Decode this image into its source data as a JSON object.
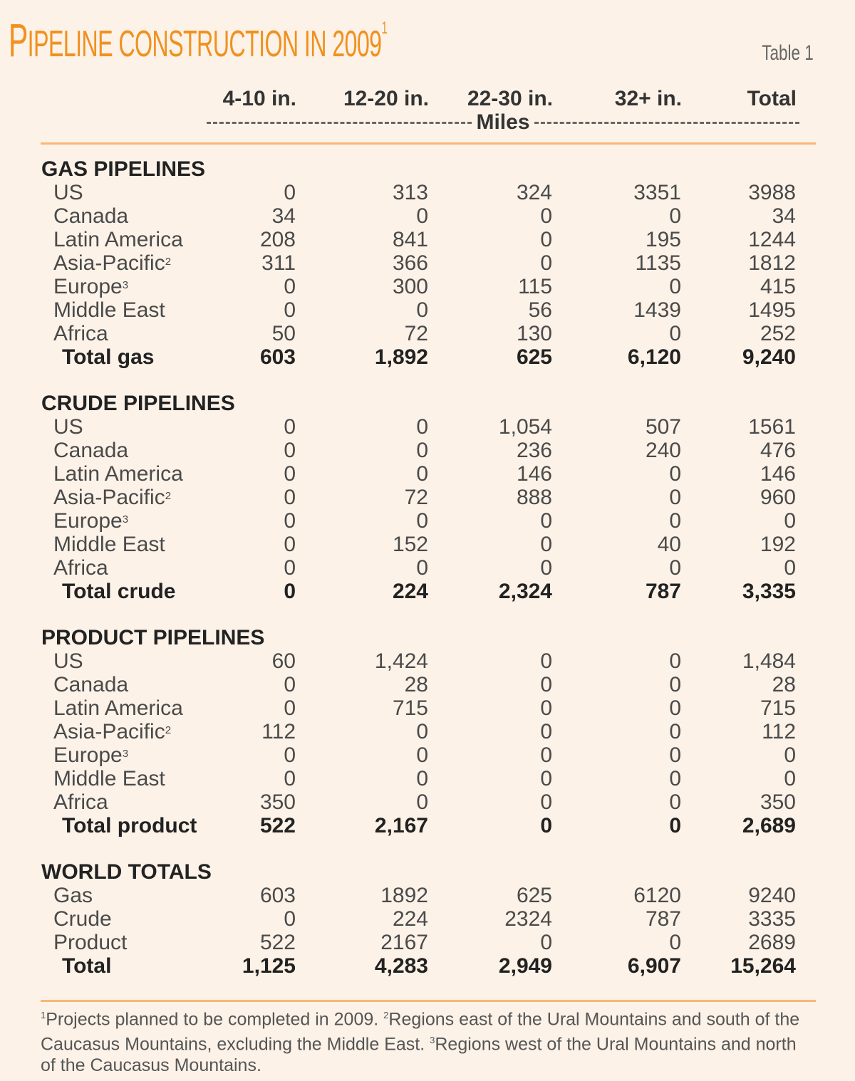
{
  "title": {
    "first_letter": "P",
    "rest": "IPELINE CONSTRUCTION IN 2009",
    "sup": "1"
  },
  "table_number": "Table 1",
  "columns": [
    "4-10 in.",
    "12-20 in.",
    "22-30 in.",
    "32+ in.",
    "Total"
  ],
  "unit": "Miles",
  "sections": [
    {
      "title": "GAS PIPELINES",
      "rows": [
        {
          "label": "US",
          "sup": "",
          "values": [
            "0",
            "313",
            "324",
            "3351",
            "3988"
          ]
        },
        {
          "label": "Canada",
          "sup": "",
          "values": [
            "34",
            "0",
            "0",
            "0",
            "34"
          ]
        },
        {
          "label": "Latin  America",
          "sup": "",
          "values": [
            "208",
            "841",
            "0",
            "195",
            "1244"
          ]
        },
        {
          "label": "Asia-Pacific",
          "sup": "2",
          "values": [
            "311",
            "366",
            "0",
            "1135",
            "1812"
          ]
        },
        {
          "label": "Europe",
          "sup": "3",
          "values": [
            "0",
            "300",
            "115",
            "0",
            "415"
          ]
        },
        {
          "label": "Middle East",
          "sup": "",
          "values": [
            "0",
            "0",
            "56",
            "1439",
            "1495"
          ]
        },
        {
          "label": "Africa",
          "sup": "",
          "values": [
            "50",
            "72",
            "130",
            "0",
            "252"
          ]
        }
      ],
      "total": {
        "label": "Total gas",
        "values": [
          "603",
          "1,892",
          "625",
          "6,120",
          "9,240"
        ]
      }
    },
    {
      "title": "CRUDE PIPELINES",
      "rows": [
        {
          "label": "US",
          "sup": "",
          "values": [
            "0",
            "0",
            "1,054",
            "507",
            "1561"
          ]
        },
        {
          "label": "Canada",
          "sup": "",
          "values": [
            "0",
            "0",
            "236",
            "240",
            "476"
          ]
        },
        {
          "label": "Latin  America",
          "sup": "",
          "values": [
            "0",
            "0",
            "146",
            "0",
            "146"
          ]
        },
        {
          "label": "Asia-Pacific",
          "sup": "2",
          "values": [
            "0",
            "72",
            "888",
            "0",
            "960"
          ]
        },
        {
          "label": "Europe",
          "sup": "3",
          "values": [
            "0",
            "0",
            "0",
            "0",
            "0"
          ]
        },
        {
          "label": "Middle East",
          "sup": "",
          "values": [
            "0",
            "152",
            "0",
            "40",
            "192"
          ]
        },
        {
          "label": "Africa",
          "sup": "",
          "values": [
            "0",
            "0",
            "0",
            "0",
            "0"
          ]
        }
      ],
      "total": {
        "label": "Total crude",
        "values": [
          "0",
          "224",
          "2,324",
          "787",
          "3,335"
        ]
      }
    },
    {
      "title": "PRODUCT PIPELINES",
      "rows": [
        {
          "label": "US",
          "sup": "",
          "values": [
            "60",
            "1,424",
            "0",
            "0",
            "1,484"
          ]
        },
        {
          "label": "Canada",
          "sup": "",
          "values": [
            "0",
            "28",
            "0",
            "0",
            "28"
          ]
        },
        {
          "label": "Latin  America",
          "sup": "",
          "values": [
            "0",
            "715",
            "0",
            "0",
            "715"
          ]
        },
        {
          "label": "Asia-Pacific",
          "sup": "2",
          "values": [
            "112",
            "0",
            "0",
            "0",
            "112"
          ]
        },
        {
          "label": "Europe",
          "sup": "3",
          "values": [
            "0",
            "0",
            "0",
            "0",
            "0"
          ]
        },
        {
          "label": "Middle East",
          "sup": "",
          "values": [
            "0",
            "0",
            "0",
            "0",
            "0"
          ]
        },
        {
          "label": "Africa",
          "sup": "",
          "values": [
            "350",
            "0",
            "0",
            "0",
            "350"
          ]
        }
      ],
      "total": {
        "label": "Total product",
        "values": [
          "522",
          "2,167",
          "0",
          "0",
          "2,689"
        ]
      }
    },
    {
      "title": "WORLD TOTALS",
      "rows": [
        {
          "label": "Gas",
          "sup": "",
          "values": [
            "603",
            "1892",
            "625",
            "6120",
            "9240"
          ]
        },
        {
          "label": "Crude",
          "sup": "",
          "values": [
            "0",
            "224",
            "2324",
            "787",
            "3335"
          ]
        },
        {
          "label": "Product",
          "sup": "",
          "values": [
            "522",
            "2167",
            "0",
            "0",
            "2689"
          ]
        }
      ],
      "total": {
        "label": "Total",
        "values": [
          "1,125",
          "4,283",
          "2,949",
          "6,907",
          "15,264"
        ]
      }
    }
  ],
  "footnotes": [
    {
      "sup": "1",
      "text": "Projects planned to be completed in 2009. "
    },
    {
      "sup": "2",
      "text": "Regions east of the Ural Mountains and south of the Caucasus Mountains, excluding the Middle East. "
    },
    {
      "sup": "3",
      "text": "Regions west of the Ural Mountains and north of the Caucasus Mountains."
    }
  ],
  "colors": {
    "title": "#f0911f",
    "rule": "#f7b777",
    "background": "#fcf2e8"
  }
}
